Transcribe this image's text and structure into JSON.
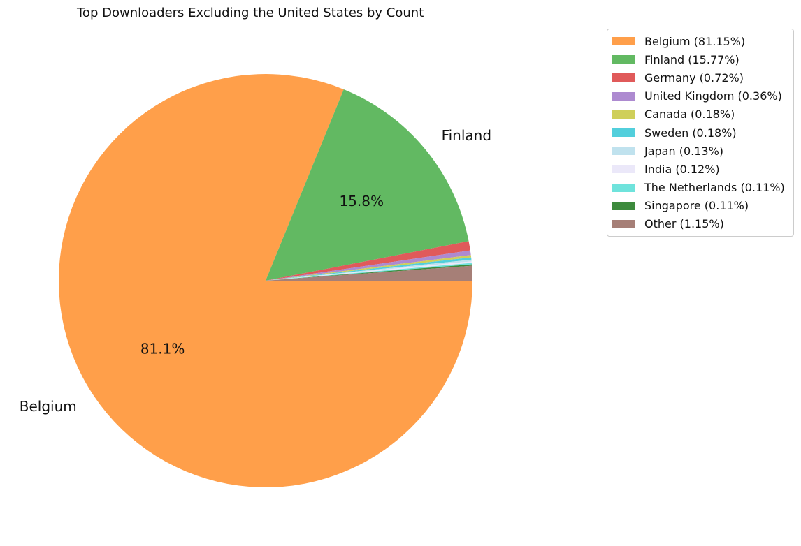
{
  "chart_data": {
    "type": "pie",
    "title": "Top Downloaders Excluding the United States by Count",
    "start_angle_deg": 0,
    "direction": "clockwise",
    "slices": [
      {
        "name": "Belgium",
        "value": 81.15,
        "legend": "Belgium (81.15%)",
        "color": "#ff9f4a",
        "outer_label": "Belgium",
        "pct_label": "81.1%"
      },
      {
        "name": "Finland",
        "value": 15.77,
        "legend": "Finland (15.77%)",
        "color": "#62b962",
        "outer_label": "Finland",
        "pct_label": "15.8%"
      },
      {
        "name": "Germany",
        "value": 0.72,
        "legend": "Germany (0.72%)",
        "color": "#e05a5a",
        "outer_label": "",
        "pct_label": ""
      },
      {
        "name": "United Kingdom",
        "value": 0.36,
        "legend": "United Kingdom (0.36%)",
        "color": "#ad8ad0",
        "outer_label": "",
        "pct_label": ""
      },
      {
        "name": "Canada",
        "value": 0.18,
        "legend": "Canada (0.18%)",
        "color": "#cfcf5a",
        "outer_label": "",
        "pct_label": ""
      },
      {
        "name": "Sweden",
        "value": 0.18,
        "legend": "Sweden (0.18%)",
        "color": "#52cfdc",
        "outer_label": "",
        "pct_label": ""
      },
      {
        "name": "Japan",
        "value": 0.13,
        "legend": "Japan (0.13%)",
        "color": "#c0e2ee",
        "outer_label": "",
        "pct_label": ""
      },
      {
        "name": "India",
        "value": 0.12,
        "legend": "India (0.12%)",
        "color": "#ebe8f9",
        "outer_label": "",
        "pct_label": ""
      },
      {
        "name": "The Netherlands",
        "value": 0.11,
        "legend": "The Netherlands (0.11%)",
        "color": "#6fe3dc",
        "outer_label": "",
        "pct_label": ""
      },
      {
        "name": "Singapore",
        "value": 0.11,
        "legend": "Singapore (0.11%)",
        "color": "#3d8a3d",
        "outer_label": "",
        "pct_label": ""
      },
      {
        "name": "Other",
        "value": 1.15,
        "legend": "Other (1.15%)",
        "color": "#a67f77",
        "outer_label": "",
        "pct_label": ""
      }
    ],
    "legend_position": "upper-right, outside plot"
  }
}
